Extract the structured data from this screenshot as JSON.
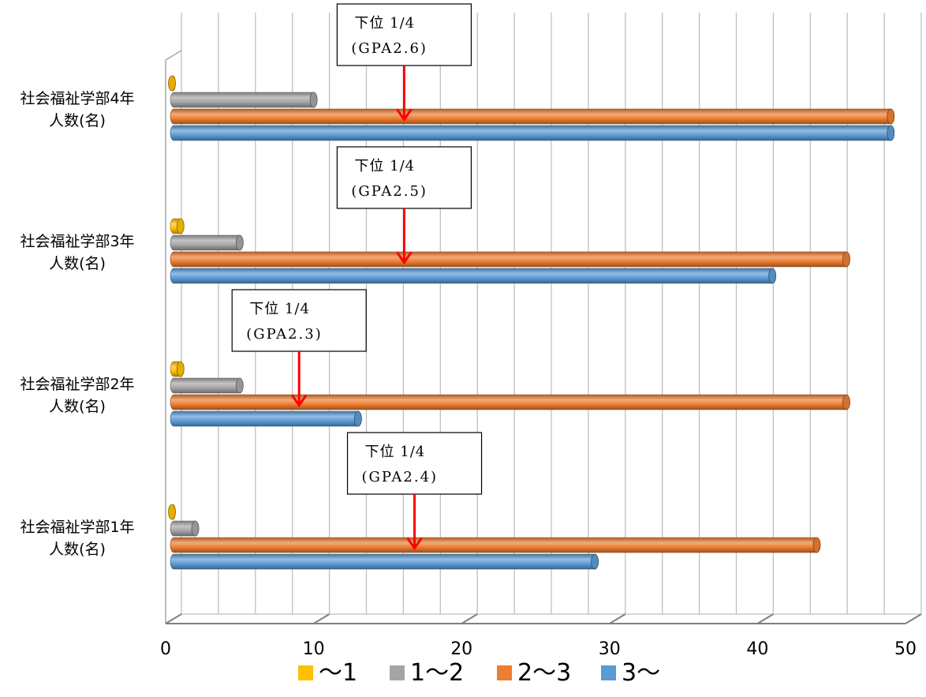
{
  "chart_data": {
    "type": "bar",
    "orientation": "horizontal",
    "categories": [
      "社会福祉学部4年\n人数(名)",
      "社会福祉学部3年\n人数(名)",
      "社会福祉学部2年\n人数(名)",
      "社会福祉学部1年\n人数(名)"
    ],
    "series": [
      {
        "name": "〜1",
        "color": "#FFC000",
        "values": [
          0,
          1,
          1,
          0
        ]
      },
      {
        "name": "1〜2",
        "color": "#A5A5A5",
        "values": [
          10,
          5,
          5,
          2
        ]
      },
      {
        "name": "2〜3",
        "color": "#ED7D31",
        "values": [
          49,
          46,
          46,
          44
        ]
      },
      {
        "name": "3〜",
        "color": "#5B9BD5",
        "values": [
          49,
          41,
          13,
          29
        ]
      }
    ],
    "xlim": [
      0,
      50
    ],
    "x_ticks": [
      0,
      10,
      20,
      30,
      40,
      50
    ],
    "grid": true,
    "legend_position": "bottom",
    "annotations": [
      {
        "category_index": 0,
        "line1": "下位 1/4",
        "line2": "(GPA2.6)",
        "x": 15.8
      },
      {
        "category_index": 1,
        "line1": "下位 1/4",
        "line2": "(GPA2.5)",
        "x": 15.8
      },
      {
        "category_index": 2,
        "line1": "下位 1/4",
        "line2": "(GPA2.3)",
        "x": 8.7
      },
      {
        "category_index": 3,
        "line1": "下位 1/4",
        "line2": "(GPA2.4)",
        "x": 16.5
      }
    ]
  }
}
